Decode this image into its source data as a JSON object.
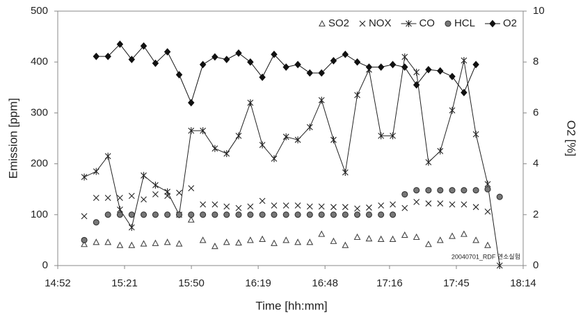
{
  "chart_data": {
    "type": "line",
    "xlabel": "Time [hh:mm]",
    "ylabel": "Emission [ppm]",
    "y2label": "O2 [%]",
    "annotation": "20040701_RDF 연소실험",
    "legend": "top-right",
    "grid": false,
    "xlim": [
      892,
      1094
    ],
    "xticks": [
      {
        "value": 892,
        "label": "14:52"
      },
      {
        "value": 921,
        "label": "15:21"
      },
      {
        "value": 950,
        "label": "15:50"
      },
      {
        "value": 979,
        "label": "16:19"
      },
      {
        "value": 1008,
        "label": "16:48"
      },
      {
        "value": 1036,
        "label": "17:16"
      },
      {
        "value": 1065,
        "label": "17:45"
      },
      {
        "value": 1094,
        "label": "18:14"
      }
    ],
    "ylim": [
      0,
      500
    ],
    "yticks": [
      0,
      100,
      200,
      300,
      400,
      500
    ],
    "y2lim": [
      0,
      10
    ],
    "y2ticks": [
      0,
      2,
      4,
      6,
      8,
      10
    ],
    "x": [
      903.5,
      908.7,
      913.8,
      919.0,
      924.1,
      929.3,
      934.4,
      939.6,
      944.7,
      949.9,
      955.0,
      960.2,
      965.3,
      970.5,
      975.6,
      980.8,
      985.9,
      991.1,
      996.2,
      1001.4,
      1006.5,
      1011.7,
      1016.8,
      1022.0,
      1027.1,
      1032.3,
      1037.4,
      1042.6,
      1047.7,
      1052.9,
      1058.0,
      1063.2,
      1068.3,
      1073.5,
      1078.6,
      1083.8
    ],
    "series": [
      {
        "name": "SO2",
        "color": "#444444",
        "marker": "triangle",
        "line": false,
        "values": [
          42,
          46,
          46,
          40,
          40,
          43,
          44,
          46,
          43,
          90,
          50,
          38,
          46,
          45,
          50,
          52,
          44,
          50,
          46,
          46,
          62,
          48,
          40,
          56,
          53,
          52,
          52,
          60,
          56,
          42,
          50,
          58,
          62,
          50,
          40,
          null
        ]
      },
      {
        "name": "NOX",
        "color": "#222222",
        "marker": "x",
        "line": false,
        "values": [
          97,
          133,
          133,
          133,
          137,
          130,
          140,
          137,
          143,
          152,
          120,
          120,
          116,
          113,
          116,
          127,
          118,
          118,
          118,
          116,
          116,
          115,
          115,
          112,
          114,
          118,
          120,
          113,
          125,
          122,
          122,
          120,
          120,
          115,
          106,
          null
        ]
      },
      {
        "name": "CO",
        "color": "#222222",
        "marker": "asterisk",
        "line": true,
        "values": [
          174,
          185,
          215,
          110,
          75,
          177,
          158,
          145,
          100,
          265,
          265,
          230,
          220,
          255,
          320,
          237,
          210,
          253,
          247,
          272,
          325,
          247,
          183,
          335,
          385,
          255,
          255,
          410,
          380,
          203,
          225,
          305,
          403,
          258,
          160,
          0
        ]
      },
      {
        "name": "HCL",
        "color": "#777777",
        "marker": "circle",
        "line": false,
        "values": [
          50,
          85,
          100,
          100,
          100,
          100,
          100,
          100,
          100,
          100,
          100,
          100,
          100,
          100,
          100,
          100,
          100,
          100,
          100,
          100,
          100,
          100,
          100,
          100,
          100,
          100,
          100,
          140,
          148,
          148,
          148,
          148,
          148,
          148,
          150,
          135
        ]
      },
      {
        "name": "O2",
        "color": "#111111",
        "marker": "diamond",
        "line": true,
        "axis": "y2",
        "values": [
          null,
          8.22,
          8.22,
          8.7,
          8.1,
          8.63,
          7.95,
          8.4,
          7.5,
          6.4,
          7.9,
          8.2,
          8.1,
          8.35,
          8.0,
          7.4,
          8.3,
          7.8,
          7.9,
          7.57,
          7.57,
          8.05,
          8.3,
          8.0,
          7.8,
          7.8,
          7.9,
          7.8,
          7.1,
          7.7,
          7.65,
          7.43,
          6.8,
          7.9,
          null,
          null
        ]
      }
    ]
  }
}
